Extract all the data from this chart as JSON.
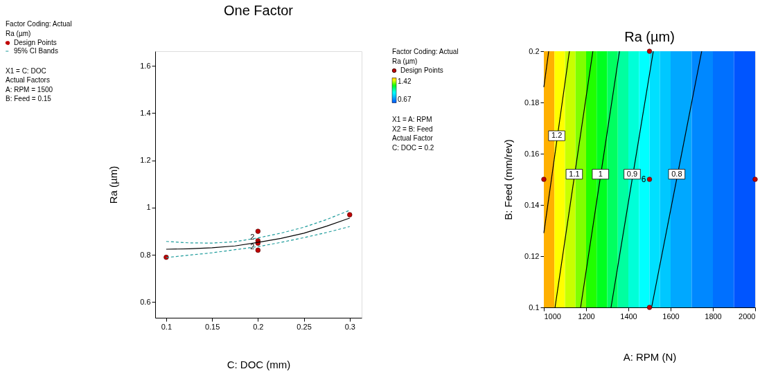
{
  "chart_data": [
    {
      "type": "line",
      "title": "One Factor",
      "xlabel": "C: DOC (mm)",
      "ylabel": "Ra (µm)",
      "xlim": [
        0.088,
        0.313
      ],
      "ylim": [
        0.534,
        1.662
      ],
      "xticks": [
        0.1,
        0.15,
        0.2,
        0.25,
        0.3
      ],
      "yticks": [
        0.6,
        0.8,
        1,
        1.2,
        1.4,
        1.6
      ],
      "grid": false,
      "legend": "left",
      "series": [
        {
          "type": "scatter",
          "name": "Design Points",
          "color": "#c00000",
          "marker": "circle",
          "x": [
            0.1,
            0.2,
            0.2,
            0.2,
            0.2,
            0.3
          ],
          "values": [
            0.79,
            0.9,
            0.86,
            0.85,
            0.82,
            0.97
          ]
        },
        {
          "type": "line",
          "color": "#000000",
          "line_style": "solid",
          "marker": "none",
          "x": [
            0.1,
            0.125,
            0.15,
            0.175,
            0.2,
            0.225,
            0.25,
            0.275,
            0.3
          ],
          "values": [
            0.824,
            0.826,
            0.83,
            0.838,
            0.853,
            0.87,
            0.892,
            0.922,
            0.956
          ]
        },
        {
          "type": "line",
          "name": "95% CI Bands",
          "color": "#1a9a9a",
          "line_style": "dashed",
          "marker": "none",
          "x": [
            0.1,
            0.125,
            0.15,
            0.175,
            0.2,
            0.225,
            0.25,
            0.275,
            0.3
          ],
          "values": [
            0.857,
            0.851,
            0.85,
            0.856,
            0.872,
            0.892,
            0.917,
            0.95,
            0.989
          ]
        },
        {
          "type": "line",
          "color": "#1a9a9a",
          "line_style": "dashed",
          "marker": "none",
          "x": [
            0.1,
            0.125,
            0.15,
            0.175,
            0.2,
            0.225,
            0.25,
            0.275,
            0.3
          ],
          "values": [
            0.789,
            0.799,
            0.809,
            0.822,
            0.835,
            0.853,
            0.873,
            0.895,
            0.92
          ]
        }
      ],
      "annotations": [
        "Factor Coding: Actual",
        "Ra (µm)",
        "X1 = C: DOC",
        "Actual Factors",
        "A: RPM = 1500",
        "B: Feed = 0.15",
        {
          "text": "2",
          "x": 0.2,
          "y": 0.86
        },
        {
          "text": "2",
          "x": 0.2,
          "y": 0.85
        }
      ]
    },
    {
      "type": "line",
      "title": "Ra (µm)",
      "xlabel": "A: RPM (N)",
      "ylabel": "B: Feed (mm/rev)",
      "xlim": [
        1000,
        2000
      ],
      "ylim": [
        0.1,
        0.2
      ],
      "xticks": [
        1000,
        1200,
        1400,
        1600,
        1800,
        2000
      ],
      "yticks": [
        0.1,
        0.12,
        0.14,
        0.16,
        0.18,
        0.2
      ],
      "grid": false,
      "legend": "left",
      "clim": [
        0.67,
        1.42
      ],
      "cticks": [
        0.67,
        1.42
      ],
      "bands": [
        {
          "axis": "x",
          "from": 1000,
          "to": 1050,
          "color": "#ffb000"
        },
        {
          "axis": "x",
          "from": 1050,
          "to": 1100,
          "color": "#ffff00"
        },
        {
          "axis": "x",
          "from": 1100,
          "to": 1150,
          "color": "#c8ff00"
        },
        {
          "axis": "x",
          "from": 1150,
          "to": 1200,
          "color": "#80ff00"
        },
        {
          "axis": "x",
          "from": 1200,
          "to": 1250,
          "color": "#20ff00"
        },
        {
          "axis": "x",
          "from": 1250,
          "to": 1300,
          "color": "#00ff20"
        },
        {
          "axis": "x",
          "from": 1300,
          "to": 1350,
          "color": "#00ff60"
        },
        {
          "axis": "x",
          "from": 1350,
          "to": 1400,
          "color": "#00ffa0"
        },
        {
          "axis": "x",
          "from": 1400,
          "to": 1450,
          "color": "#00ffd8"
        },
        {
          "axis": "x",
          "from": 1450,
          "to": 1500,
          "color": "#00ffff"
        },
        {
          "axis": "x",
          "from": 1500,
          "to": 1550,
          "color": "#00e0ff"
        },
        {
          "axis": "x",
          "from": 1550,
          "to": 1600,
          "color": "#00c8ff"
        },
        {
          "axis": "x",
          "from": 1600,
          "to": 1700,
          "color": "#00a8ff"
        },
        {
          "axis": "x",
          "from": 1700,
          "to": 1800,
          "color": "#0088ff"
        },
        {
          "axis": "x",
          "from": 1800,
          "to": 1900,
          "color": "#0070ff"
        },
        {
          "axis": "x",
          "from": 1900,
          "to": 2000,
          "color": "#0055ff"
        }
      ],
      "series": [
        {
          "type": "line",
          "color": "#000000",
          "line_style": "solid",
          "marker": "none",
          "x": [
            1000,
            1023
          ],
          "values": [
            0.186,
            0.2
          ]
        },
        {
          "type": "line",
          "color": "#000000",
          "line_style": "solid",
          "marker": "none",
          "x": [
            1000,
            1121
          ],
          "values": [
            0.129,
            0.2
          ]
        },
        {
          "type": "line",
          "color": "#000000",
          "line_style": "solid",
          "marker": "none",
          "x": [
            1053,
            1232
          ],
          "values": [
            0.1,
            0.2
          ]
        },
        {
          "type": "line",
          "color": "#000000",
          "line_style": "solid",
          "marker": "none",
          "x": [
            1174,
            1358
          ],
          "values": [
            0.1,
            0.2
          ]
        },
        {
          "type": "line",
          "color": "#000000",
          "line_style": "solid",
          "marker": "none",
          "x": [
            1318,
            1518
          ],
          "values": [
            0.1,
            0.2
          ]
        },
        {
          "type": "line",
          "color": "#000000",
          "line_style": "solid",
          "marker": "none",
          "x": [
            1510,
            1747
          ],
          "values": [
            0.1,
            0.2
          ]
        },
        {
          "type": "scatter",
          "name": "Design Points",
          "color": "#c00000",
          "marker": "circle",
          "x": [
            1000,
            1500,
            1500,
            1500,
            2000
          ],
          "values": [
            0.15,
            0.2,
            0.15,
            0.1,
            0.15
          ]
        }
      ],
      "annotations": [
        "Factor Coding: Actual",
        "Ra (µm)",
        "X1 = A: RPM",
        "X2 = B: Feed",
        "Actual Factor",
        "C: DOC = 0.2",
        {
          "text": "1.2",
          "x": 1061,
          "y": 0.167
        },
        {
          "text": "1.1",
          "x": 1144,
          "y": 0.152
        },
        {
          "text": "1",
          "x": 1268,
          "y": 0.152
        },
        {
          "text": "0.9",
          "x": 1418,
          "y": 0.152
        },
        {
          "text": "0.8",
          "x": 1629,
          "y": 0.152
        },
        {
          "text": "6",
          "x": 1500,
          "y": 0.15
        }
      ]
    }
  ]
}
